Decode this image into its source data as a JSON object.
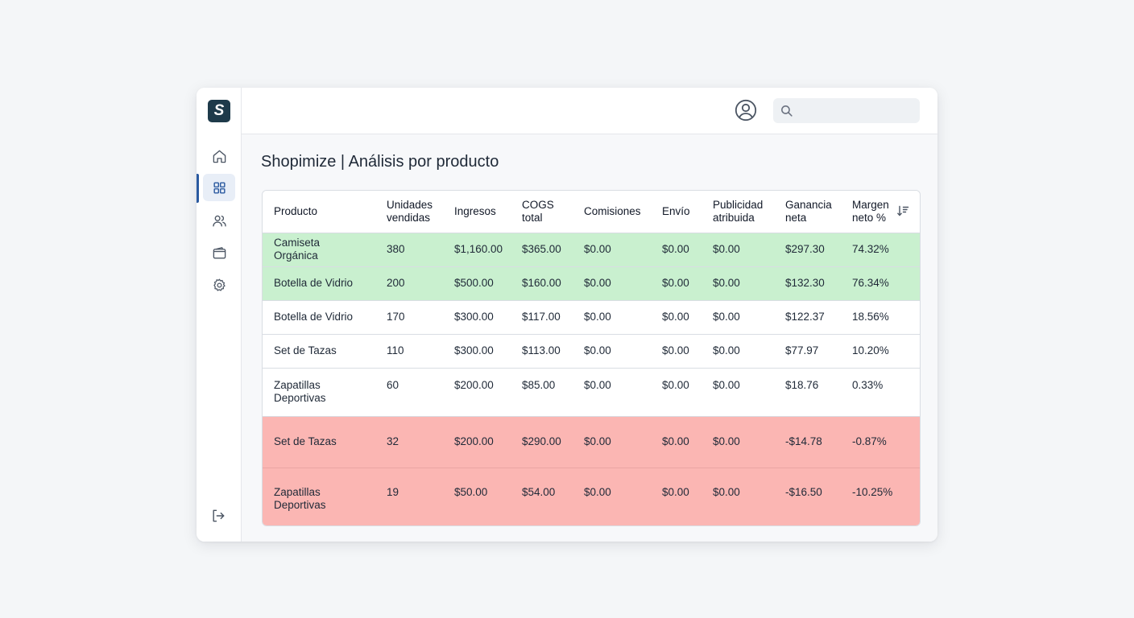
{
  "app": {
    "logo_letter": "S",
    "brand_color": "#1e3a4a",
    "accent": "#2b5aa0"
  },
  "sidebar": {
    "items": [
      {
        "name": "home",
        "icon": "home-icon",
        "active": false
      },
      {
        "name": "dashboard",
        "icon": "grid-icon",
        "active": true
      },
      {
        "name": "users",
        "icon": "users-icon",
        "active": false
      },
      {
        "name": "wallet",
        "icon": "wallet-icon",
        "active": false
      },
      {
        "name": "settings",
        "icon": "gear-icon",
        "active": false
      }
    ],
    "logout_icon": "logout-icon"
  },
  "header": {
    "avatar_icon": "user-circle-icon",
    "search": {
      "placeholder": "",
      "value": ""
    }
  },
  "page": {
    "title": "Shopimize | Análisis por producto"
  },
  "table": {
    "columns": [
      {
        "line1": "Producto",
        "line2": ""
      },
      {
        "line1": "Unidades",
        "line2": "vendidas"
      },
      {
        "line1": "Ingresos",
        "line2": ""
      },
      {
        "line1": "COGS",
        "line2": "total"
      },
      {
        "line1": "Comisiones",
        "line2": ""
      },
      {
        "line1": "Envío",
        "line2": ""
      },
      {
        "line1": "Publicidad",
        "line2": "atribuida"
      },
      {
        "line1": "Ganancia",
        "line2": "neta"
      },
      {
        "line1": "Margen",
        "line2": "neto %"
      }
    ],
    "sort_icon": "sort-descending-icon",
    "rows": [
      {
        "status": "positive",
        "c": [
          "Camiseta Orgánica",
          "380",
          "$1,160.00",
          "$365.00",
          "$0.00",
          "$0.00",
          "$0.00",
          "$297.30",
          "74.32%"
        ]
      },
      {
        "status": "positive",
        "c": [
          "Botella de Vidrio",
          "200",
          "$500.00",
          "$160.00",
          "$0.00",
          "$0.00",
          "$0.00",
          "$132.30",
          "76.34%"
        ]
      },
      {
        "status": "neutral",
        "c": [
          "Botella de Vidrio",
          "170",
          "$300.00",
          "$117.00",
          "$0.00",
          "$0.00",
          "$0.00",
          "$122.37",
          "18.56%"
        ]
      },
      {
        "status": "neutral",
        "c": [
          "Set de Tazas",
          "110",
          "$300.00",
          "$113.00",
          "$0.00",
          "$0.00",
          "$0.00",
          "$77.97",
          "10.20%"
        ]
      },
      {
        "status": "neutral",
        "c": [
          "Zapatillas Deportivas",
          "60",
          "$200.00",
          "$85.00",
          "$0.00",
          "$0.00",
          "$0.00",
          "$18.76",
          "0.33%"
        ]
      },
      {
        "status": "negative",
        "c": [
          "Set de Tazas",
          "32",
          "$200.00",
          "$290.00",
          "$0.00",
          "$0.00",
          "$0.00",
          "-$14.78",
          "-0.87%"
        ]
      },
      {
        "status": "negative",
        "c": [
          "Zapatillas Deportivas",
          "19",
          "$50.00",
          "$54.00",
          "$0.00",
          "$0.00",
          "$0.00",
          "-$16.50",
          "-10.25%"
        ]
      }
    ],
    "colors": {
      "positive": "#c9f0cf",
      "neutral": "#ffffff",
      "negative": "#fbb6b3"
    }
  }
}
